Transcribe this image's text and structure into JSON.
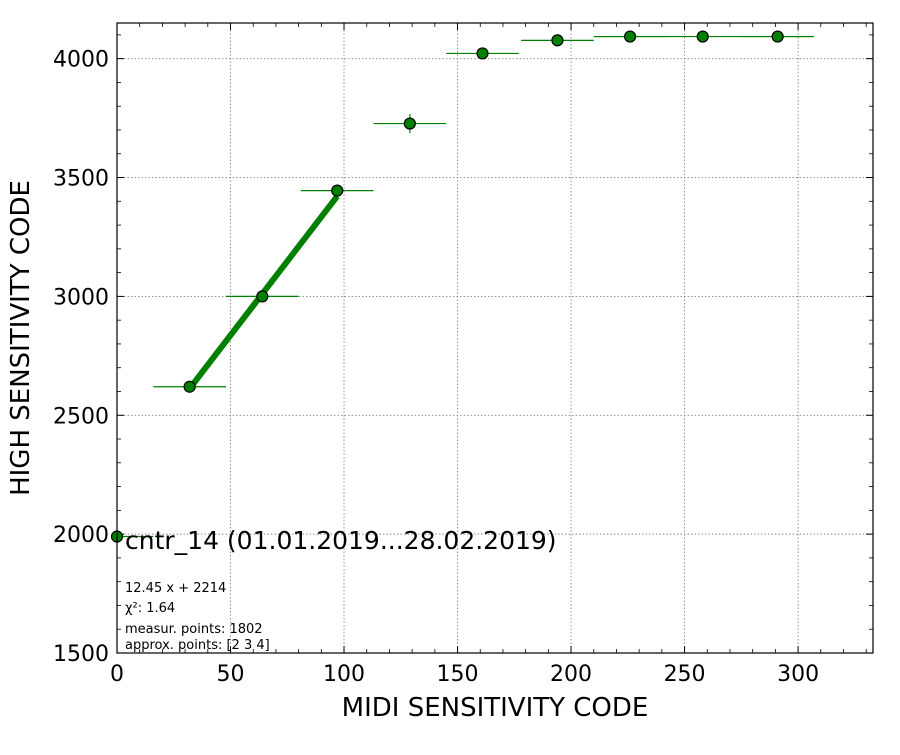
{
  "chart_data": {
    "type": "scatter",
    "title": "",
    "xlabel": "MIDI SENSITIVITY CODE",
    "ylabel": "HIGH SENSITIVITY CODE",
    "xlim": [
      0,
      333
    ],
    "ylim": [
      1500,
      4150
    ],
    "xticks": [
      0,
      50,
      100,
      150,
      200,
      250,
      300
    ],
    "yticks": [
      1500,
      2000,
      2500,
      3000,
      3500,
      4000
    ],
    "grid": true,
    "series": [
      {
        "kind": "points-with-xerr",
        "color": "#008000",
        "points": [
          {
            "x": 0,
            "y": 1990,
            "xerr": 16,
            "yerr": 0
          },
          {
            "x": 32,
            "y": 2620,
            "xerr": 16,
            "yerr": 0
          },
          {
            "x": 64,
            "y": 3000,
            "xerr": 16,
            "yerr": 0
          },
          {
            "x": 97,
            "y": 3445,
            "xerr": 16,
            "yerr": 8
          },
          {
            "x": 129,
            "y": 3727,
            "xerr": 16,
            "yerr": 40
          },
          {
            "x": 161,
            "y": 4022,
            "xerr": 16,
            "yerr": 0
          },
          {
            "x": 194,
            "y": 4077,
            "xerr": 16,
            "yerr": 0
          },
          {
            "x": 226,
            "y": 4093,
            "xerr": 16,
            "yerr": 0
          },
          {
            "x": 258,
            "y": 4093,
            "xerr": 48,
            "yerr": 0
          },
          {
            "x": 291,
            "y": 4093,
            "xerr": 16,
            "yerr": 0
          }
        ]
      }
    ],
    "fit": {
      "slope": 12.45,
      "intercept": 2214,
      "x_range": [
        32,
        97
      ],
      "color": "#008000"
    },
    "legend": {
      "label": "cntr_14 (01.01.2019...28.02.2019)",
      "position": "lower-left"
    },
    "annotations": [
      "12.45 x + 2214",
      "χ²: 1.64",
      "measur. points: 1802",
      "approx. points: [2 3 4]"
    ]
  }
}
